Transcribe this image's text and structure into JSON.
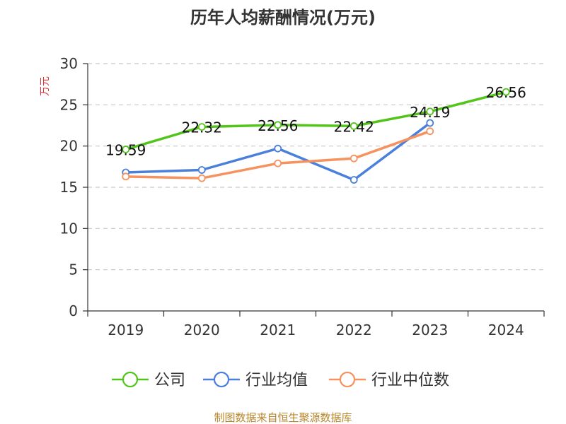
{
  "chart_data": {
    "type": "line",
    "title": "历年人均薪酬情况(万元)",
    "ylabel": "万元",
    "xlabel": "",
    "categories": [
      "2019",
      "2020",
      "2021",
      "2022",
      "2023",
      "2024"
    ],
    "ylim": [
      0,
      30
    ],
    "yticks": [
      "0",
      "5",
      "10",
      "15",
      "20",
      "25",
      "30"
    ],
    "grid": true,
    "legend_position": "bottom",
    "series": [
      {
        "name": "公司",
        "color": "#52c41a",
        "values": [
          19.59,
          22.32,
          22.56,
          22.42,
          24.19,
          26.56
        ],
        "labels": [
          "19.59",
          "22.32",
          "22.56",
          "22.42",
          "24.19",
          "26.56"
        ]
      },
      {
        "name": "行业均值",
        "color": "#4a7fdc",
        "values": [
          16.8,
          17.1,
          19.7,
          15.9,
          22.8,
          null
        ]
      },
      {
        "name": "行业中位数",
        "color": "#f5925e",
        "values": [
          16.3,
          16.1,
          17.9,
          18.5,
          21.8,
          null
        ]
      }
    ]
  },
  "source": "制图数据来自恒生聚源数据库",
  "colors": {
    "ylabel": "#e0343c",
    "source": "#b8862b",
    "axis": "#333333",
    "grid": "#c8c8c8"
  }
}
